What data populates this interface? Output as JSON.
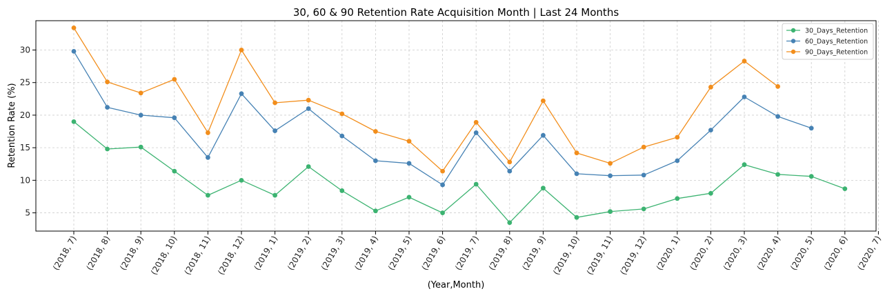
{
  "chart_data": {
    "type": "line",
    "title": "30, 60 & 90 Retention Rate Acquisition Month | Last 24 Months",
    "xlabel": "(Year,Month)",
    "ylabel": "Retention Rate (%)",
    "ylim": [
      2.2,
      34.5
    ],
    "yticks": [
      5,
      10,
      15,
      20,
      25,
      30
    ],
    "grid": true,
    "legend_position": "top-right",
    "categories": [
      "(2018, 7)",
      "(2018, 8)",
      "(2018, 9)",
      "(2018, 10)",
      "(2018, 11)",
      "(2018, 12)",
      "(2019, 1)",
      "(2019, 2)",
      "(2019, 3)",
      "(2019, 4)",
      "(2019, 5)",
      "(2019, 6)",
      "(2019, 7)",
      "(2019, 8)",
      "(2019, 9)",
      "(2019, 10)",
      "(2019, 11)",
      "(2019, 12)",
      "(2020, 1)",
      "(2020, 2)",
      "(2020, 3)",
      "(2020, 4)",
      "(2020, 5)",
      "(2020, 6)",
      "(2020, 7)"
    ],
    "series": [
      {
        "name": "30_Days_Retention",
        "color": "#3cb371",
        "values": [
          19.0,
          14.8,
          15.1,
          11.4,
          7.7,
          10.0,
          7.7,
          12.1,
          8.4,
          5.3,
          7.4,
          5.0,
          9.4,
          3.5,
          8.8,
          4.3,
          5.2,
          5.6,
          7.2,
          8.0,
          12.4,
          10.9,
          10.6,
          8.7,
          null
        ]
      },
      {
        "name": "60_Days_Retention",
        "color": "#4682b4",
        "values": [
          29.8,
          21.2,
          20.0,
          19.6,
          13.5,
          23.3,
          17.6,
          21.0,
          16.8,
          13.0,
          12.6,
          9.3,
          17.3,
          11.4,
          16.9,
          11.0,
          10.7,
          10.8,
          13.0,
          17.7,
          22.8,
          19.8,
          18.0,
          null,
          null
        ]
      },
      {
        "name": "90_Days_Retention",
        "color": "#f28e1c",
        "values": [
          33.4,
          25.1,
          23.4,
          25.5,
          17.3,
          30.0,
          21.9,
          22.3,
          20.2,
          17.5,
          16.0,
          11.4,
          18.9,
          12.8,
          22.2,
          14.2,
          12.6,
          15.1,
          16.6,
          24.3,
          28.3,
          24.4,
          null,
          null,
          null
        ]
      }
    ]
  }
}
